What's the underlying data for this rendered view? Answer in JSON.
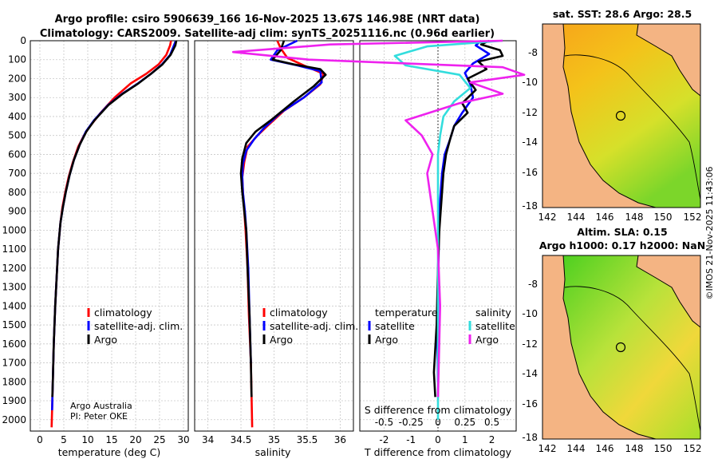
{
  "header": {
    "title_line1": "Argo profile: csiro 5906639_166 16-Nov-2025 13.67S 146.98E (NRT data)",
    "title_line2": "Climatology: CARS2009. Satellite-adj clim: synTS_20251116.nc (0.96d earlier)"
  },
  "colors": {
    "climatology": "#ff0000",
    "satellite": "#0000ff",
    "argo": "#000000",
    "sat_salinity": "#33dddd",
    "argo_salinity": "#ee22ee"
  },
  "chart_data": [
    {
      "id": "temperature",
      "type": "line",
      "xlabel": "temperature (deg C)",
      "ylabel": "",
      "xlim": [
        -2,
        31
      ],
      "ylim": [
        2060,
        0
      ],
      "xticks": [
        0,
        5,
        10,
        15,
        20,
        25,
        30
      ],
      "yticks": [
        0,
        100,
        200,
        300,
        400,
        500,
        600,
        700,
        800,
        900,
        1000,
        1100,
        1200,
        1300,
        1400,
        1500,
        1600,
        1700,
        1800,
        1900,
        2000
      ],
      "legend": [
        "climatology",
        "satellite-adj. clim.",
        "Argo"
      ],
      "legend_location": "lower-right",
      "series": [
        {
          "name": "climatology",
          "color": "#ff0000",
          "x": [
            27.4,
            27.2,
            26.4,
            24.8,
            22.2,
            19.0,
            15.6,
            12.7,
            10.2,
            9.2,
            8.0,
            6.9,
            6.0,
            5.3,
            4.7,
            4.3,
            3.8,
            3.5,
            3.2,
            2.9,
            2.7,
            2.55,
            2.45
          ],
          "y": [
            0,
            25,
            75,
            125,
            175,
            225,
            300,
            380,
            460,
            500,
            560,
            640,
            720,
            800,
            880,
            960,
            1100,
            1250,
            1400,
            1600,
            1800,
            1950,
            2040
          ]
        },
        {
          "name": "satellite-adj. clim.",
          "color": "#0000ff",
          "x": [
            28.4,
            28.0,
            27.2,
            25.5,
            23.2,
            20.5,
            17.2,
            14.2,
            11.3,
            9.6,
            8.3,
            7.1,
            6.2,
            5.4,
            4.8,
            4.3,
            3.8,
            3.5,
            3.2,
            2.9,
            2.7,
            2.55
          ],
          "y": [
            0,
            25,
            75,
            125,
            175,
            225,
            280,
            340,
            420,
            480,
            550,
            630,
            710,
            800,
            880,
            960,
            1100,
            1250,
            1400,
            1600,
            1800,
            1950
          ]
        },
        {
          "name": "Argo",
          "color": "#000000",
          "x": [
            28.5,
            28.3,
            27.3,
            25.6,
            23.2,
            20.6,
            17.3,
            14.3,
            11.4,
            9.7,
            8.3,
            7.1,
            6.2,
            5.4,
            4.8,
            4.3,
            3.8,
            3.5,
            3.2,
            2.9,
            2.7,
            2.6
          ],
          "y": [
            0,
            25,
            75,
            125,
            175,
            225,
            280,
            340,
            420,
            480,
            550,
            630,
            710,
            800,
            880,
            960,
            1100,
            1250,
            1400,
            1600,
            1800,
            1880
          ]
        }
      ]
    },
    {
      "id": "salinity",
      "type": "line",
      "xlabel": "salinity",
      "xlim": [
        33.8,
        36.2
      ],
      "ylim": [
        2060,
        0
      ],
      "xticks": [
        34,
        34.5,
        35,
        35.5,
        36
      ],
      "legend": [
        "climatology",
        "satellite-adj. clim.",
        "Argo"
      ],
      "legend_location": "lower-right",
      "series": [
        {
          "name": "climatology",
          "color": "#ff0000",
          "x": [
            35.05,
            35.1,
            35.2,
            35.45,
            35.75,
            35.7,
            35.45,
            35.15,
            34.9,
            34.75,
            34.6,
            34.55,
            34.52,
            34.53,
            34.55,
            34.57,
            34.6,
            34.62,
            34.65,
            34.67
          ],
          "y": [
            0,
            40,
            90,
            130,
            175,
            230,
            300,
            370,
            450,
            500,
            560,
            640,
            720,
            800,
            900,
            1000,
            1200,
            1450,
            1700,
            2040
          ]
        },
        {
          "name": "satellite-adj. clim.",
          "color": "#0000ff",
          "x": [
            35.35,
            35.05,
            34.95,
            35.35,
            35.7,
            35.72,
            35.45,
            35.1,
            34.85,
            34.7,
            34.58,
            34.53,
            34.52,
            34.53,
            34.56,
            34.58,
            34.61,
            34.63,
            34.65
          ],
          "y": [
            0,
            50,
            100,
            130,
            160,
            220,
            300,
            380,
            460,
            520,
            580,
            650,
            720,
            800,
            900,
            1000,
            1200,
            1450,
            1700
          ]
        },
        {
          "name": "Argo",
          "color": "#000000",
          "x": [
            35.15,
            35.1,
            34.98,
            35.3,
            35.7,
            35.78,
            35.6,
            35.3,
            34.95,
            34.72,
            34.58,
            34.52,
            34.5,
            34.52,
            34.55,
            34.58,
            34.6,
            34.63,
            34.65,
            34.66
          ],
          "y": [
            0,
            50,
            100,
            125,
            150,
            180,
            240,
            320,
            420,
            480,
            540,
            620,
            700,
            800,
            900,
            1000,
            1200,
            1450,
            1700,
            1880
          ]
        }
      ]
    },
    {
      "id": "difference",
      "type": "line",
      "xlabel": "T difference from climatology",
      "xlabel_top": "S difference from climatology",
      "xlim": [
        -2.9,
        2.9
      ],
      "ylim": [
        2060,
        0
      ],
      "xticks": [
        -2,
        -1,
        0,
        1,
        2
      ],
      "xticks_salinity": [
        -0.5,
        -0.25,
        0,
        0.25,
        0.5
      ],
      "legend_temperature_title": "temperature",
      "legend_salinity_title": "salinity",
      "legend_temperature": [
        "satellite",
        "Argo"
      ],
      "legend_salinity": [
        "satellite",
        "Argo"
      ],
      "legend_location": "lower",
      "series": [
        {
          "name": "T satellite",
          "color": "#0000ff",
          "x": [
            1.6,
            1.4,
            1.9,
            1.3,
            1.0,
            1.2,
            1.3,
            0.9,
            0.6,
            0.45,
            0.25,
            0.15,
            0.1,
            0.05,
            0.03,
            0.02,
            0.0,
            -0.02,
            0.0
          ],
          "y": [
            0,
            25,
            70,
            120,
            170,
            230,
            300,
            380,
            450,
            520,
            600,
            700,
            800,
            900,
            1000,
            1200,
            1400,
            1600,
            1800
          ]
        },
        {
          "name": "T Argo",
          "color": "#000000",
          "x": [
            1.9,
            1.6,
            2.3,
            2.4,
            1.5,
            1.8,
            1.1,
            1.4,
            0.9,
            1.1,
            0.6,
            0.45,
            0.3,
            0.2,
            0.15,
            0.1,
            0.05,
            0.0,
            -0.05,
            -0.15,
            -0.1
          ],
          "y": [
            0,
            20,
            50,
            80,
            110,
            150,
            200,
            260,
            330,
            380,
            450,
            520,
            600,
            700,
            800,
            900,
            1000,
            1200,
            1500,
            1750,
            1880
          ]
        },
        {
          "name": "S satellite",
          "color": "#33dddd",
          "x": [
            0.6,
            -0.1,
            -0.4,
            -0.3,
            0.2,
            0.3,
            0.15,
            0.05,
            0.02,
            0.0,
            0.0,
            0.0,
            0.0,
            0.0
          ],
          "y": [
            0,
            30,
            80,
            130,
            180,
            250,
            320,
            400,
            500,
            600,
            800,
            1200,
            1600,
            2000
          ]
        },
        {
          "name": "S Argo",
          "color": "#ee22ee",
          "x": [
            0.6,
            -1.0,
            -1.9,
            -1.2,
            0.6,
            0.8,
            0.3,
            0.6,
            0.2,
            -0.3,
            -0.15,
            -0.05,
            -0.1,
            -0.05,
            0.0,
            0.02,
            0.0
          ],
          "y": [
            0,
            20,
            60,
            100,
            140,
            180,
            220,
            280,
            330,
            420,
            500,
            600,
            700,
            900,
            1100,
            1400,
            1880
          ]
        }
      ]
    }
  ],
  "maps": {
    "sst_title": "sat. SST: 28.6 Argo: 28.5",
    "sla_title_line1": "Altim. SLA: 0.15",
    "sla_title_line2": "Argo h1000: 0.17 h2000: NaN",
    "lat_ticks": [
      "-8",
      "-10",
      "-12",
      "-14",
      "-16",
      "-18"
    ],
    "lon_ticks": [
      "142",
      "144",
      "146",
      "148",
      "150",
      "152"
    ]
  },
  "credits": {
    "line1": "Argo Australia",
    "line2": "PI: Peter OKE",
    "imos": "©IMOS 21-Nov-2025 11:43:06"
  }
}
